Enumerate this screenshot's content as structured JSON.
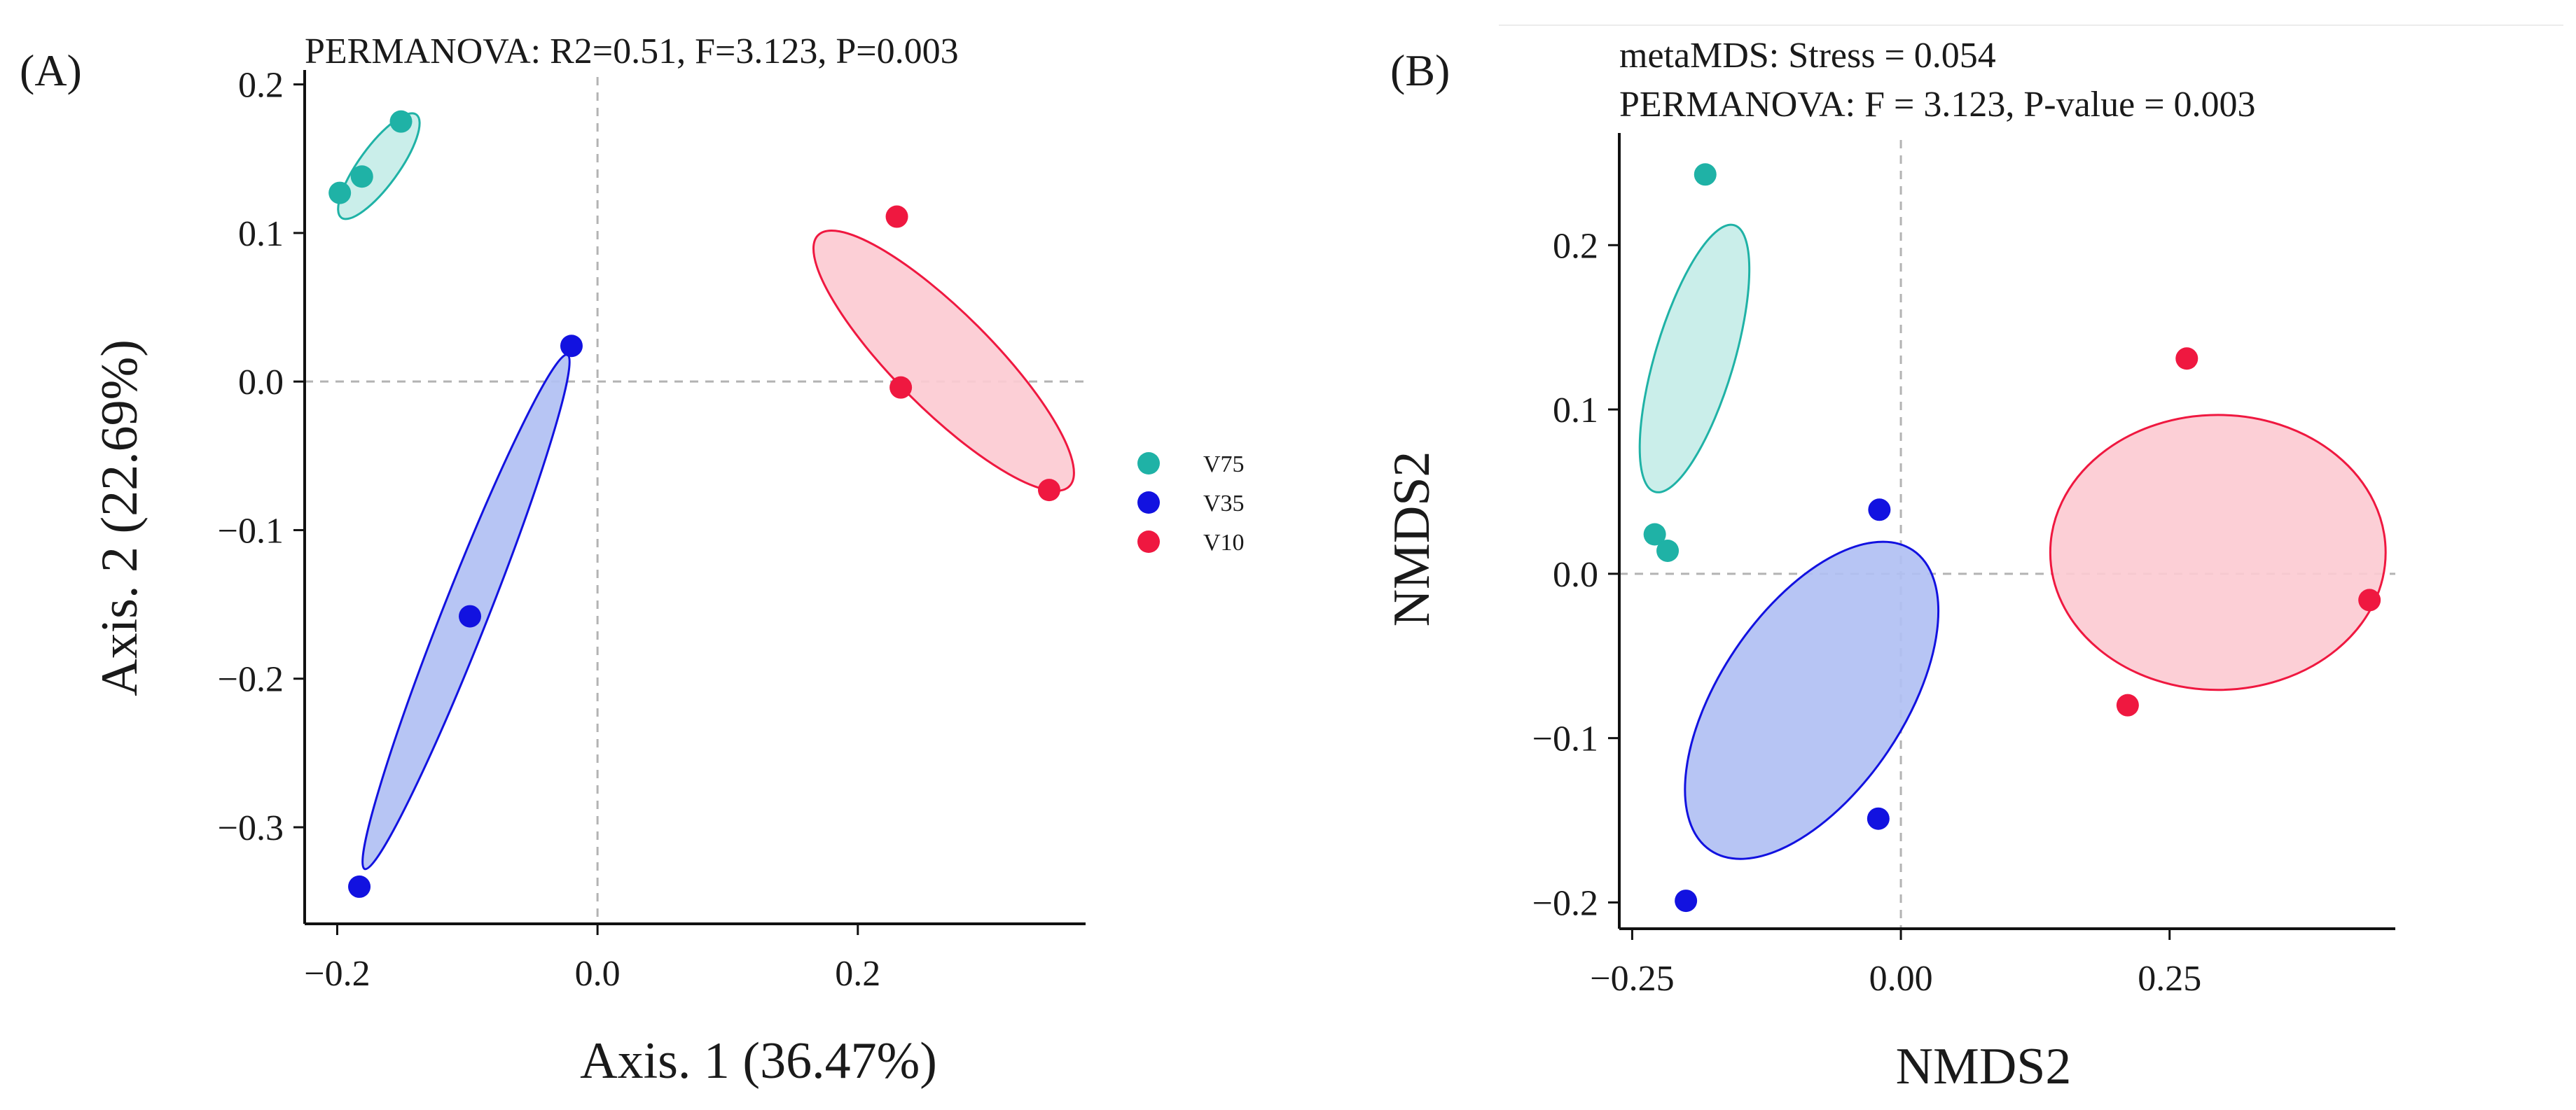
{
  "chart_data": [
    {
      "type": "scatter",
      "panel_label": "(A)",
      "title": "PERMANOVA: R2=0.51, F=3.123, P=0.003",
      "subtitle": "",
      "xlabel": "Axis. 1 (36.47%)",
      "ylabel": "Axis. 2 (22.69%)",
      "xlim": [
        -0.225,
        0.375
      ],
      "ylim": [
        -0.365,
        0.205
      ],
      "xticks": [
        -0.2,
        0.0,
        0.2
      ],
      "xtick_labels": [
        "−0.2",
        "0.0",
        "0.2"
      ],
      "yticks": [
        0.2,
        0.1,
        0.0,
        -0.1,
        -0.2,
        -0.3
      ],
      "ytick_labels": [
        "0.2",
        "0.1",
        "0.0",
        "−0.1",
        "−0.2",
        "−0.3"
      ],
      "zero_lines": true,
      "legend_position": "right",
      "legend": [
        "V75",
        "V35",
        "V10"
      ],
      "series": [
        {
          "name": "V75",
          "color": "#1fb2a6",
          "fill": "#c6ede8",
          "points": [
            [
              -0.198,
              0.127
            ],
            [
              -0.181,
              0.138
            ],
            [
              -0.151,
              0.175
            ]
          ],
          "ellipse": {
            "cx": -0.168,
            "cy": 0.145,
            "rx": 0.049,
            "ry": 0.0152,
            "angle_deg": 54
          }
        },
        {
          "name": "V35",
          "color": "#1212e0",
          "fill": "#b1c0f3",
          "points": [
            [
              -0.02,
              0.024
            ],
            [
              -0.098,
              -0.158
            ],
            [
              -0.183,
              -0.34
            ]
          ],
          "ellipse": {
            "cx": -0.101,
            "cy": -0.155,
            "rx": 0.2125,
            "ry": 0.0174,
            "angle_deg": 68.5
          }
        },
        {
          "name": "V10",
          "color": "#ef1840",
          "fill": "#fccbd3",
          "points": [
            [
              0.23,
              0.111
            ],
            [
              0.233,
              -0.004
            ],
            [
              0.347,
              -0.073
            ]
          ],
          "ellipse": {
            "cx": 0.266,
            "cy": 0.014,
            "rx": 0.1365,
            "ry": 0.0373,
            "angle_deg": -45
          }
        }
      ]
    },
    {
      "type": "scatter",
      "panel_label": "(B)",
      "title": "metaMDS: Stress = 0.054",
      "subtitle": "PERMANOVA: F = 3.123, P-value = 0.003",
      "xlabel": "NMDS2",
      "ylabel": "NMDS2",
      "xlim": [
        -0.262,
        0.46
      ],
      "ylim": [
        -0.216,
        0.264
      ],
      "xticks": [
        -0.25,
        0.0,
        0.25
      ],
      "xtick_labels": [
        "−0.25",
        "0.00",
        "0.25"
      ],
      "yticks": [
        0.2,
        0.1,
        0.0,
        -0.1,
        -0.2
      ],
      "ytick_labels": [
        "0.2",
        "0.1",
        "0.0",
        "−0.1",
        "−0.2"
      ],
      "zero_lines": true,
      "legend_position": "none",
      "series": [
        {
          "name": "V75",
          "color": "#1fb2a6",
          "fill": "#c6ede8",
          "points": [
            [
              -0.182,
              0.243
            ],
            [
              -0.229,
              0.024
            ],
            [
              -0.217,
              0.014
            ]
          ],
          "ellipse": {
            "cx": -0.192,
            "cy": 0.131,
            "rx": 0.1295,
            "ry": 0.0366,
            "angle_deg": 73.4
          }
        },
        {
          "name": "V35",
          "color": "#1212e0",
          "fill": "#b1c0f3",
          "points": [
            [
              -0.02,
              0.039
            ],
            [
              -0.021,
              -0.149
            ],
            [
              -0.2,
              -0.199
            ]
          ],
          "ellipse": {
            "cx": -0.083,
            "cy": -0.077,
            "rx": 0.1685,
            "ry": 0.0854,
            "angle_deg": 56
          }
        },
        {
          "name": "V10",
          "color": "#ef1840",
          "fill": "#fccbd3",
          "points": [
            [
              0.266,
              0.131
            ],
            [
              0.436,
              -0.016
            ],
            [
              0.211,
              -0.08
            ]
          ],
          "ellipse": {
            "cx": 0.295,
            "cy": 0.013,
            "rx": 0.156,
            "ry": 0.128,
            "angle_deg": 0
          }
        }
      ]
    }
  ]
}
